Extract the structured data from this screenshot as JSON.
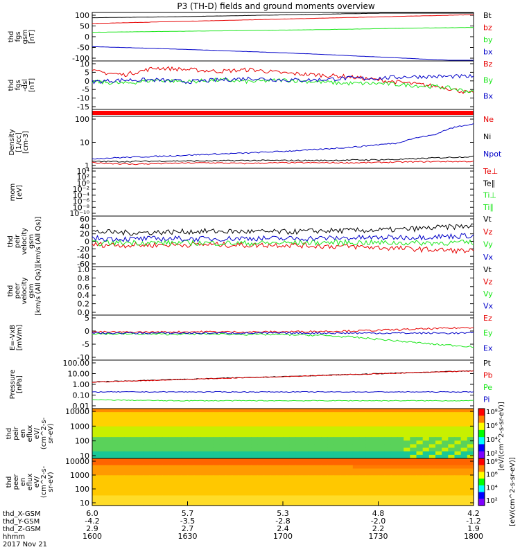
{
  "title": "P3 (TH-D) fields and ground moments overview",
  "colors": {
    "black": "#000000",
    "red": "#e60000",
    "green": "#19e619",
    "blue": "#0000c8",
    "bar_red": "#ff0000"
  },
  "chart_data": [
    {
      "type": "line",
      "ylabel": [
        "thd",
        "fgs",
        "gsm",
        "[nT]"
      ],
      "yticks": [
        "100",
        "50",
        "0",
        "-50",
        "-100"
      ],
      "ylim": [
        -110,
        110
      ],
      "series": [
        {
          "name": "Bt",
          "color": "black",
          "values": [
            86,
            88,
            90,
            93,
            96,
            99,
            102,
            105,
            108,
            111,
            114
          ]
        },
        {
          "name": "bz",
          "color": "red",
          "values": [
            60,
            64,
            68,
            72,
            76,
            80,
            84,
            88,
            92,
            96,
            100
          ]
        },
        {
          "name": "by",
          "color": "green",
          "values": [
            20,
            22,
            24,
            26,
            28,
            30,
            32,
            35,
            38,
            40,
            42
          ]
        },
        {
          "name": "bx",
          "color": "blue",
          "values": [
            -45,
            -50,
            -55,
            -61,
            -67,
            -73,
            -80,
            -88,
            -96,
            -104,
            -112
          ]
        }
      ]
    },
    {
      "type": "line",
      "ylabel": [
        "thd",
        "fgs",
        "-dsl",
        "[nT]"
      ],
      "yticks": [
        "10",
        "5",
        "0",
        "-5",
        "-10",
        "-15"
      ],
      "ylim": [
        -18,
        10
      ],
      "series": [
        {
          "name": "Bz",
          "color": "red",
          "values": [
            4,
            2,
            6,
            5,
            4,
            5,
            3,
            2,
            1,
            -1,
            -3,
            -5,
            -9
          ]
        },
        {
          "name": "By",
          "color": "green",
          "values": [
            -2,
            -3,
            -1,
            -2,
            -1,
            -2,
            -1,
            -2,
            -3,
            -3,
            -4,
            -5,
            -8
          ]
        },
        {
          "name": "Bx",
          "color": "blue",
          "values": [
            -2,
            -1,
            -1,
            -2,
            -1,
            0,
            -1,
            -1,
            0,
            0,
            1,
            1,
            1
          ]
        }
      ]
    },
    {
      "type": "line",
      "ylabel": [
        "Density",
        "[1/cc]",
        "[cm-3]"
      ],
      "yticks": [
        "100",
        "10",
        "1"
      ],
      "scale": "log",
      "ylim": [
        0.3,
        200
      ],
      "series": [
        {
          "name": "Ne",
          "color": "red",
          "values": [
            0.6,
            0.5,
            0.55,
            0.6,
            0.55,
            0.6,
            0.6,
            0.6,
            0.65,
            0.7,
            0.7
          ]
        },
        {
          "name": "Ni",
          "color": "black",
          "values": [
            0.7,
            0.7,
            0.75,
            0.75,
            0.8,
            0.8,
            0.8,
            0.85,
            0.9,
            1.1,
            1.3
          ]
        },
        {
          "name": "Npot",
          "color": "blue",
          "values": [
            1.0,
            1.2,
            1.4,
            1.7,
            2.0,
            2.5,
            3.2,
            4.5,
            7.0,
            20,
            80
          ]
        }
      ]
    },
    {
      "type": "line",
      "ylabel": [
        "mom",
        "[eV]"
      ],
      "yticks": [
        "10⁴",
        "10²",
        "10⁰",
        "10⁻²",
        "10⁻⁴",
        "10⁻⁶",
        "10⁻⁸",
        "10⁻¹⁰"
      ],
      "series": [
        {
          "name": "Te⊥",
          "color": "red"
        },
        {
          "name": "Te∥",
          "color": "black"
        },
        {
          "name": "Ti⊥",
          "color": "green"
        },
        {
          "name": "Ti∥",
          "color": "green"
        }
      ]
    },
    {
      "type": "line",
      "ylabel": [
        "thd",
        "peir",
        "velocity",
        "gsm",
        "[km/s (All Qs)]"
      ],
      "yticks": [
        "60",
        "40",
        "20",
        "0",
        "-20",
        "-40",
        "-60"
      ],
      "ylim": [
        -65,
        65
      ],
      "series": [
        {
          "name": "Vt",
          "color": "black",
          "values": [
            25,
            22,
            24,
            26,
            25,
            24,
            27,
            28,
            30,
            35,
            40
          ]
        },
        {
          "name": "Vz",
          "color": "red",
          "values": [
            -8,
            -10,
            -9,
            -8,
            -10,
            -9,
            -12,
            -14,
            -18,
            -22,
            -25
          ]
        },
        {
          "name": "Vy",
          "color": "green",
          "values": [
            -5,
            -3,
            -4,
            -4,
            -5,
            -4,
            -3,
            -3,
            -4,
            -4,
            -3
          ]
        },
        {
          "name": "Vx",
          "color": "blue",
          "values": [
            8,
            6,
            7,
            6,
            8,
            7,
            8,
            9,
            10,
            12,
            15
          ]
        }
      ]
    },
    {
      "type": "line",
      "ylabel": [
        "thd",
        "peer",
        "velocity",
        "gsm",
        "[km/s (All Qs)]"
      ],
      "yticks": [
        "1.0",
        "0.8",
        "0.6",
        "0.4",
        "0.2",
        "0.0"
      ],
      "series": [
        {
          "name": "Vt",
          "color": "black"
        },
        {
          "name": "Vz",
          "color": "red"
        },
        {
          "name": "Vy",
          "color": "green"
        },
        {
          "name": "Vx",
          "color": "blue"
        }
      ]
    },
    {
      "type": "line",
      "ylabel": [
        "E=-VxB",
        "[mV/m]"
      ],
      "yticks": [
        "5",
        "0",
        "-5",
        "-10"
      ],
      "ylim": [
        -12,
        8
      ],
      "series": [
        {
          "name": "Ez",
          "color": "red",
          "values": [
            0.5,
            0.4,
            0.5,
            0.6,
            0.5,
            0.6,
            0.8,
            1.0,
            1.5,
            2.0,
            2.5
          ]
        },
        {
          "name": "Ey",
          "color": "green",
          "values": [
            -0.3,
            -0.4,
            -0.5,
            -0.4,
            -0.6,
            -0.7,
            -1.0,
            -2.0,
            -3.5,
            -5.0,
            -6.0
          ]
        },
        {
          "name": "Ex",
          "color": "blue",
          "values": [
            0,
            0,
            0,
            0,
            0,
            0,
            0,
            0,
            0,
            0,
            0
          ]
        }
      ]
    },
    {
      "type": "line",
      "ylabel": [
        "Pressure",
        "[nPa]"
      ],
      "yticks": [
        "100.00",
        "10.00",
        "1.00",
        "0.10",
        "0.01"
      ],
      "scale": "log",
      "ylim": [
        0.01,
        200
      ],
      "series": [
        {
          "name": "Pt",
          "color": "black",
          "values": [
            2.3,
            2.9,
            3.6,
            4.5,
            5.6,
            7.0,
            8.8,
            11.0,
            14.0,
            17.5,
            22.0
          ]
        },
        {
          "name": "Pb",
          "color": "red",
          "values": [
            2.2,
            2.8,
            3.5,
            4.4,
            5.5,
            6.9,
            8.7,
            10.9,
            13.9,
            17.4,
            21.8
          ]
        },
        {
          "name": "Pe",
          "color": "green",
          "values": [
            0.06,
            0.055,
            0.05,
            0.05,
            0.05,
            0.05,
            0.05,
            0.05,
            0.05,
            0.05,
            0.05
          ]
        },
        {
          "name": "Pi",
          "color": "blue",
          "values": [
            0.3,
            0.3,
            0.3,
            0.3,
            0.3,
            0.3,
            0.3,
            0.3,
            0.3,
            0.3,
            0.3
          ]
        }
      ]
    },
    {
      "type": "heatmap",
      "ylabel": [
        "thd",
        "peir",
        "en",
        "eflux",
        "eV/",
        "(cm^2-s-",
        "sr-eV)"
      ],
      "yticks": [
        "10000",
        "1000",
        "100",
        "10"
      ],
      "scale": "log",
      "colorbar_ticks": [
        "10⁸",
        "10⁶",
        "10⁴",
        "10²"
      ]
    },
    {
      "type": "heatmap",
      "ylabel": [
        "thd",
        "peer",
        "en",
        "eflux",
        "eV/",
        "(cm^2-s-",
        "sr-eV)"
      ],
      "yticks": [
        "10000",
        "1000",
        "100",
        "10"
      ],
      "scale": "log",
      "colorbar_ticks": [
        "10⁸",
        "10⁶",
        "10⁴",
        "10²"
      ]
    }
  ],
  "colorbar_label": "[eV/(cm^2-s-sr-eV)]",
  "colorbar_label_inner": "[eV/(cm^2-s-sr-eV)]",
  "x_axis": {
    "rows": [
      {
        "label": "thd_X-GSM",
        "values": [
          "6.0",
          "5.7",
          "5.3",
          "4.8",
          "4.2"
        ]
      },
      {
        "label": "thd_Y-GSM",
        "values": [
          "-4.2",
          "-3.5",
          "-2.8",
          "-2.0",
          "-1.2"
        ]
      },
      {
        "label": "thd_Z-GSM",
        "values": [
          "2.9",
          "2.7",
          "2.4",
          "2.2",
          "1.9"
        ]
      },
      {
        "label": "hhmm",
        "values": [
          "1600",
          "1630",
          "1700",
          "1730",
          "1800"
        ]
      }
    ],
    "date": "2017 Nov 21"
  }
}
